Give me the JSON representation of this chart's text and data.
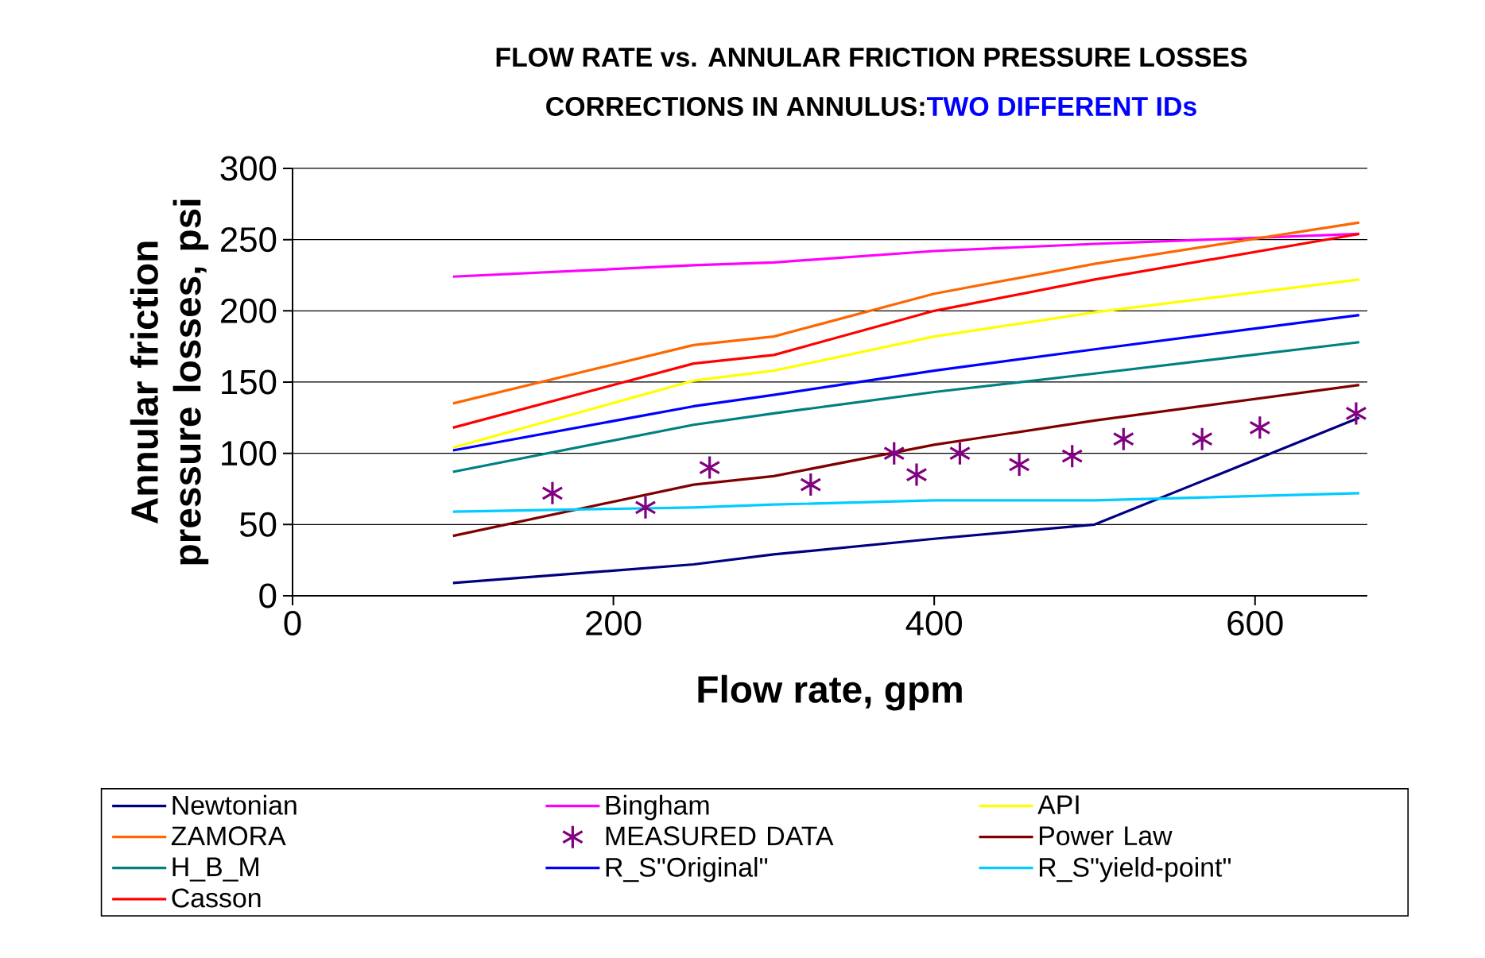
{
  "chart_data": {
    "type": "line",
    "title": "FLOW RATE vs. ANNULAR FRICTION PRESSURE LOSSES",
    "subtitle": "CORRECTIONS IN ANNULUS:",
    "annotations": [
      "TWO DIFFERENT IDs"
    ],
    "xlabel": "Flow rate, gpm",
    "ylabel": "Annular friction pressure losses, psi",
    "x": [
      100,
      250,
      300,
      400,
      500,
      665
    ],
    "series": [
      {
        "name": "Newtonian",
        "color": "#000080",
        "values": [
          9,
          22,
          29,
          40,
          50,
          125
        ]
      },
      {
        "name": "Bingham",
        "color": "#ff00ff",
        "values": [
          224,
          232,
          234,
          242,
          247,
          254
        ]
      },
      {
        "name": "API",
        "color": "#ffff00",
        "values": [
          104,
          151,
          158,
          182,
          199,
          222
        ]
      },
      {
        "name": "ZAMORA",
        "color": "#ff6600",
        "values": [
          135,
          176,
          182,
          212,
          233,
          262
        ]
      },
      {
        "name": "MEASURED DATA",
        "type": "scatter",
        "marker": "cross",
        "color": "#800080",
        "x": [
          162,
          220,
          260,
          323,
          375,
          389,
          416,
          453,
          486,
          518,
          567,
          603,
          663
        ],
        "values": [
          72,
          62,
          90,
          78,
          100,
          85,
          100,
          92,
          98,
          110,
          110,
          118,
          128
        ]
      },
      {
        "name": "Power Law",
        "color": "#800000",
        "values": [
          42,
          78,
          84,
          106,
          123,
          148
        ]
      },
      {
        "name": "H_B_M",
        "color": "#008080",
        "values": [
          87,
          120,
          128,
          143,
          156,
          178
        ]
      },
      {
        "name": "R_S\"Original\"",
        "color": "#0000ff",
        "values": [
          102,
          133,
          141,
          158,
          173,
          197
        ]
      },
      {
        "name": "R_S\"yield-point\"",
        "color": "#00ccff",
        "values": [
          59,
          62,
          64,
          67,
          67,
          72
        ]
      },
      {
        "name": "Casson",
        "color": "#ff0000",
        "values": [
          118,
          163,
          169,
          200,
          222,
          254
        ]
      }
    ],
    "xlim": [
      0,
      670
    ],
    "ylim": [
      0,
      300
    ],
    "xticks": [
      0,
      200,
      400,
      600
    ],
    "yticks": [
      0,
      50,
      100,
      150,
      200,
      250,
      300
    ],
    "grid": "y",
    "legend": "bottom",
    "marker": "none",
    "line_style": "solid"
  }
}
